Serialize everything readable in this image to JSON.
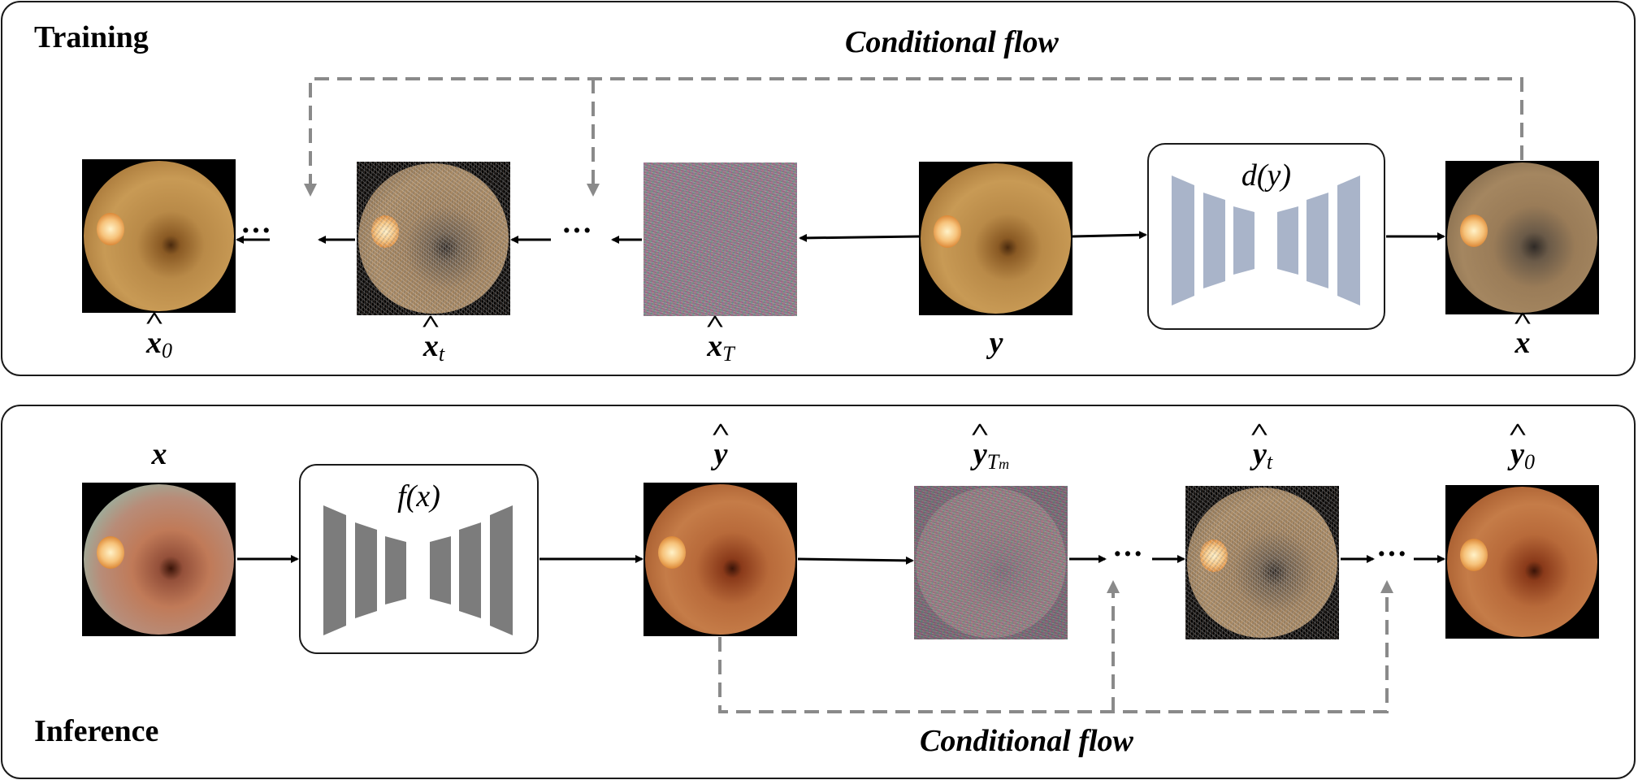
{
  "training": {
    "heading": "Training",
    "flow_label": "Conditional flow",
    "denoiser_label": "d(y)",
    "labels": {
      "x0": "x",
      "x0_sub": "0",
      "xt": "x",
      "xt_sub": "t",
      "xT": "x",
      "xT_sub": "T",
      "y": "y",
      "xhat": "x"
    }
  },
  "inference": {
    "heading": "Inference",
    "flow_label": "Conditional flow",
    "model_label": "f(x)",
    "labels": {
      "x": "x",
      "yhat": "y",
      "yTm": "y",
      "yTm_sub": "T",
      "yTm_subsub": "m",
      "yt": "y",
      "yt_sub": "t",
      "y0": "y",
      "y0_sub": "0"
    }
  },
  "ellipsis": "···",
  "colors": {
    "dashed_arrow": "#8a8a8a",
    "training_blocks": "#a9b4c9",
    "inference_blocks": "#7c7c7c",
    "solid_arrow": "#000000"
  }
}
